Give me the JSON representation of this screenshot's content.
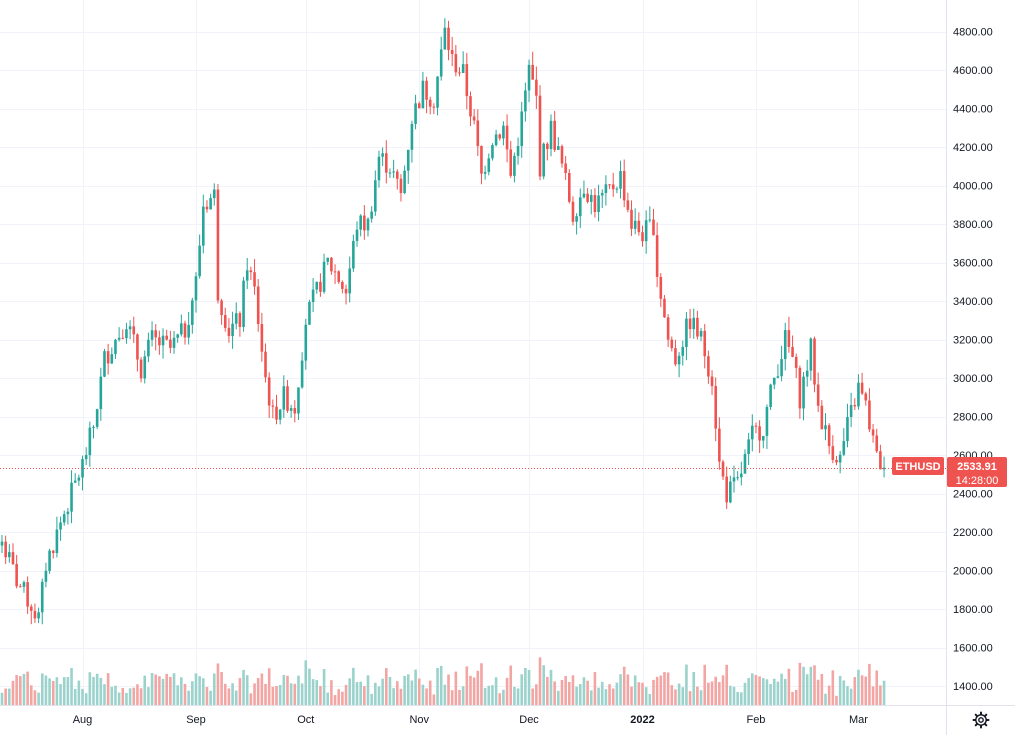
{
  "symbol_label": "ETHUSD",
  "last_price_label": "2533.91",
  "countdown_label": "14:28:00",
  "colors": {
    "up": "#26a69a",
    "down": "#ef5350",
    "up_volume": "#9bd3cc",
    "down_volume": "#f2a5a3",
    "grid": "#f0f3fa",
    "price_line": "#ef5350",
    "badge": "#ef5350"
  },
  "icons": {
    "settings": "gear-icon"
  },
  "chart_data": {
    "type": "candlestick",
    "title": "",
    "xlabel": "",
    "ylabel": "",
    "x_range": [
      "2021-07-10",
      "2022-03-09"
    ],
    "ylim": [
      1200,
      4950
    ],
    "y_ticks": [
      "1400.00",
      "1600.00",
      "1800.00",
      "2000.00",
      "2200.00",
      "2400.00",
      "2600.00",
      "2800.00",
      "3000.00",
      "3200.00",
      "3400.00",
      "3600.00",
      "3800.00",
      "4000.00",
      "4200.00",
      "4400.00",
      "4600.00",
      "4800.00"
    ],
    "x_ticks": [
      {
        "label": "Aug",
        "date": "2021-08-01",
        "bold": false
      },
      {
        "label": "Sep",
        "date": "2021-09-01",
        "bold": false
      },
      {
        "label": "Oct",
        "date": "2021-10-01",
        "bold": false
      },
      {
        "label": "Nov",
        "date": "2021-11-01",
        "bold": false
      },
      {
        "label": "Dec",
        "date": "2021-12-01",
        "bold": false
      },
      {
        "label": "2022",
        "date": "2022-01-01",
        "bold": true
      },
      {
        "label": "Feb",
        "date": "2022-02-01",
        "bold": false
      },
      {
        "label": "Mar",
        "date": "2022-03-01",
        "bold": false
      }
    ],
    "last_price": 2533.91,
    "price_anchors": [
      [
        "2021-07-10",
        2150
      ],
      [
        "2021-07-14",
        1950
      ],
      [
        "2021-07-20",
        1750
      ],
      [
        "2021-07-22",
        2030
      ],
      [
        "2021-07-26",
        2250
      ],
      [
        "2021-08-01",
        2550
      ],
      [
        "2021-08-04",
        2750
      ],
      [
        "2021-08-07",
        3100
      ],
      [
        "2021-08-10",
        3200
      ],
      [
        "2021-08-13",
        3300
      ],
      [
        "2021-08-17",
        3050
      ],
      [
        "2021-08-20",
        3200
      ],
      [
        "2021-08-25",
        3150
      ],
      [
        "2021-08-29",
        3250
      ],
      [
        "2021-09-01",
        3500
      ],
      [
        "2021-09-03",
        3900
      ],
      [
        "2021-09-06",
        3950
      ],
      [
        "2021-09-07",
        3450
      ],
      [
        "2021-09-10",
        3250
      ],
      [
        "2021-09-13",
        3300
      ],
      [
        "2021-09-15",
        3600
      ],
      [
        "2021-09-17",
        3450
      ],
      [
        "2021-09-20",
        3000
      ],
      [
        "2021-09-22",
        2800
      ],
      [
        "2021-09-25",
        2900
      ],
      [
        "2021-09-28",
        2850
      ],
      [
        "2021-10-01",
        3300
      ],
      [
        "2021-10-04",
        3450
      ],
      [
        "2021-10-07",
        3600
      ],
      [
        "2021-10-09",
        3550
      ],
      [
        "2021-10-12",
        3450
      ],
      [
        "2021-10-15",
        3800
      ],
      [
        "2021-10-18",
        3800
      ],
      [
        "2021-10-21",
        4150
      ],
      [
        "2021-10-24",
        4100
      ],
      [
        "2021-10-27",
        3950
      ],
      [
        "2021-10-30",
        4350
      ],
      [
        "2021-11-02",
        4500
      ],
      [
        "2021-11-05",
        4450
      ],
      [
        "2021-11-08",
        4800
      ],
      [
        "2021-11-10",
        4650
      ],
      [
        "2021-11-13",
        4580
      ],
      [
        "2021-11-16",
        4300
      ],
      [
        "2021-11-18",
        4050
      ],
      [
        "2021-11-21",
        4250
      ],
      [
        "2021-11-24",
        4300
      ],
      [
        "2021-11-26",
        4050
      ],
      [
        "2021-11-29",
        4350
      ],
      [
        "2021-12-01",
        4600
      ],
      [
        "2021-12-03",
        4450
      ],
      [
        "2021-12-04",
        4100
      ],
      [
        "2021-12-07",
        4300
      ],
      [
        "2021-12-10",
        4100
      ],
      [
        "2021-12-13",
        3850
      ],
      [
        "2021-12-16",
        4000
      ],
      [
        "2021-12-19",
        3900
      ],
      [
        "2021-12-22",
        3950
      ],
      [
        "2021-12-26",
        4050
      ],
      [
        "2021-12-29",
        3800
      ],
      [
        "2022-01-01",
        3750
      ],
      [
        "2022-01-04",
        3800
      ],
      [
        "2022-01-05",
        3550
      ],
      [
        "2022-01-08",
        3200
      ],
      [
        "2022-01-10",
        3100
      ],
      [
        "2022-01-14",
        3300
      ],
      [
        "2022-01-17",
        3200
      ],
      [
        "2022-01-20",
        3000
      ],
      [
        "2022-01-22",
        2550
      ],
      [
        "2022-01-24",
        2400
      ],
      [
        "2022-01-27",
        2450
      ],
      [
        "2022-01-31",
        2700
      ],
      [
        "2022-02-03",
        2750
      ],
      [
        "2022-02-06",
        3000
      ],
      [
        "2022-02-09",
        3200
      ],
      [
        "2022-02-11",
        3100
      ],
      [
        "2022-02-13",
        2900
      ],
      [
        "2022-02-16",
        3150
      ],
      [
        "2022-02-18",
        2850
      ],
      [
        "2022-02-21",
        2650
      ],
      [
        "2022-02-24",
        2580
      ],
      [
        "2022-02-26",
        2750
      ],
      [
        "2022-03-01",
        2950
      ],
      [
        "2022-03-03",
        2850
      ],
      [
        "2022-03-06",
        2580
      ],
      [
        "2022-03-08",
        2533.91
      ]
    ],
    "volume_note": "volume bars along the bottom in matching up/down colors; axis scale not printed"
  }
}
